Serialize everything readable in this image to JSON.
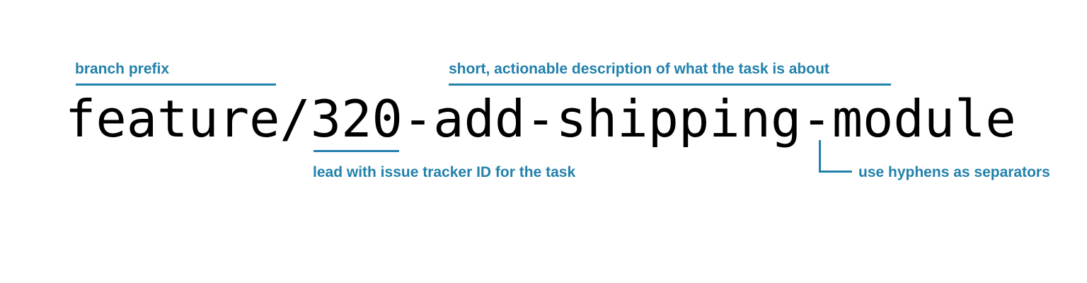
{
  "annotations": {
    "prefix": "branch prefix",
    "description": "short, actionable  description of what the task is about",
    "issue_id": "lead with issue tracker ID for the task",
    "separators": "use hyphens as separators"
  },
  "branch_name": {
    "full": "feature/320-add-shipping-module"
  },
  "colors": {
    "annotation": "#2281ab",
    "branch_text": "#000000"
  }
}
